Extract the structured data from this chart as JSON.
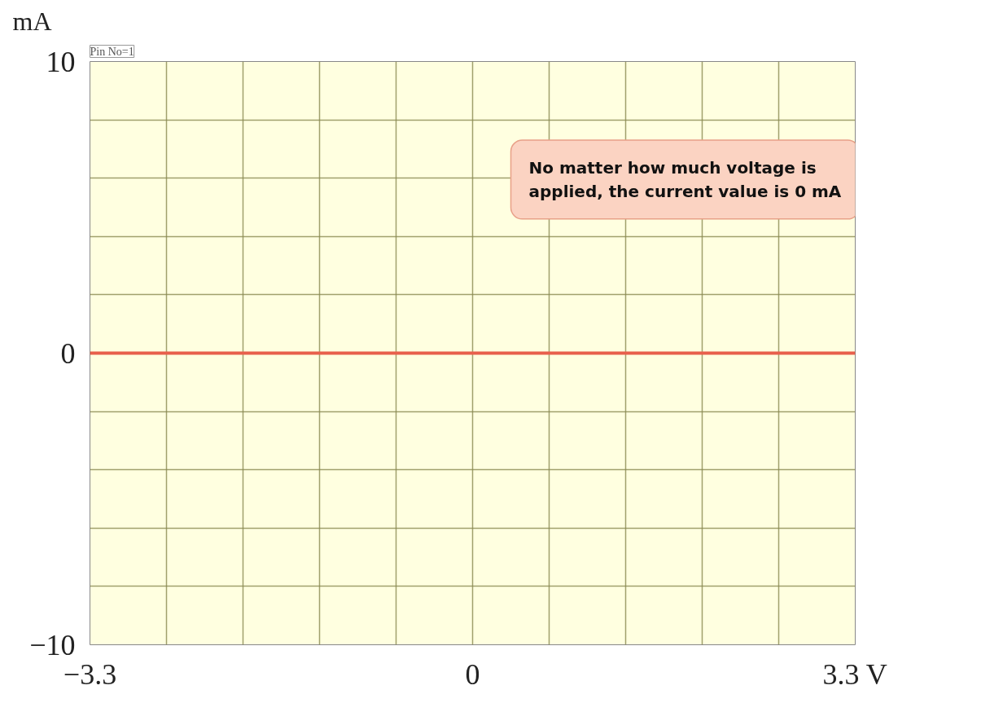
{
  "chart_data": {
    "type": "line",
    "subtitle": "Pin No=1",
    "ylabel": "mA",
    "x": [
      -3.3,
      3.3
    ],
    "series": [
      {
        "color": "#e8604c",
        "values": [
          0,
          0
        ]
      }
    ],
    "xlim": [
      -3.3,
      3.3
    ],
    "xticks": [
      {
        "value": -3.3,
        "label": "−3.3"
      },
      {
        "value": -2.64,
        "label": null
      },
      {
        "value": -1.98,
        "label": null
      },
      {
        "value": -1.32,
        "label": null
      },
      {
        "value": -0.66,
        "label": null
      },
      0,
      {
        "value": 0.66,
        "label": null
      },
      {
        "value": 1.32,
        "label": null
      },
      {
        "value": 1.98,
        "label": null
      },
      {
        "value": 2.64,
        "label": null
      },
      {
        "value": 3.3,
        "label": "3.3 V"
      }
    ],
    "ylim": [
      -10,
      10
    ],
    "yticks": [
      {
        "value": -10,
        "label": "−10"
      },
      {
        "value": -8,
        "label": null
      },
      {
        "value": -6,
        "label": null
      },
      {
        "value": -4,
        "label": null
      },
      {
        "value": -2,
        "label": null
      },
      0,
      {
        "value": 2,
        "label": null
      },
      {
        "value": 4,
        "label": null
      },
      {
        "value": 6,
        "label": null
      },
      {
        "value": 8,
        "label": null
      },
      10
    ],
    "grid": true,
    "annotations": [
      "No matter how much voltage is applied, the current value is 0 mA"
    ]
  }
}
